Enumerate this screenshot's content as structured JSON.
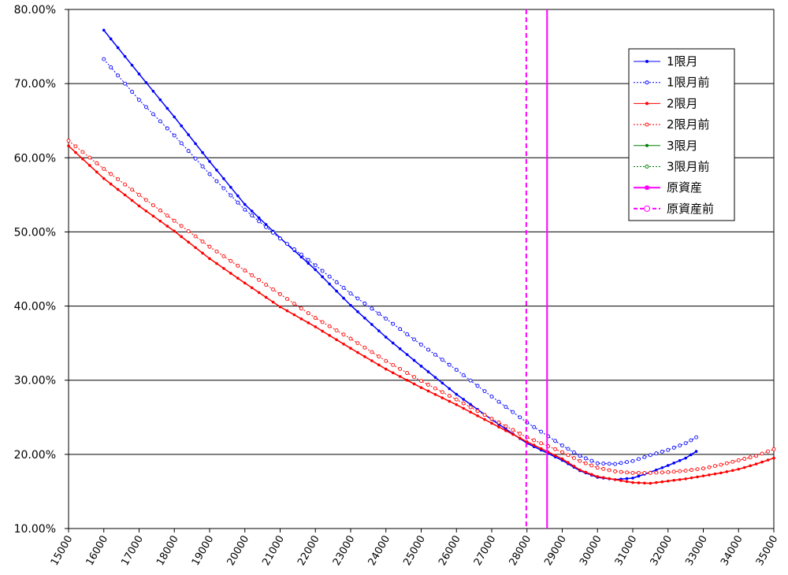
{
  "chart_data": {
    "type": "line",
    "title": "",
    "xlabel": "",
    "ylabel": "",
    "xlim": [
      15000,
      35000
    ],
    "ylim": [
      0.1,
      0.8
    ],
    "x_ticks": [
      "15000",
      "16000",
      "17000",
      "18000",
      "19000",
      "20000",
      "21000",
      "22000",
      "23000",
      "24000",
      "25000",
      "26000",
      "27000",
      "28000",
      "29000",
      "30000",
      "31000",
      "32000",
      "33000",
      "34000",
      "35000"
    ],
    "y_ticks": [
      "10.00%",
      "20.00%",
      "30.00%",
      "40.00%",
      "50.00%",
      "60.00%",
      "70.00%",
      "80.00%"
    ],
    "grid": "horizontal",
    "legend_position": "right",
    "series": [
      {
        "name": "1限月",
        "color": "#0000ff",
        "style": "solid",
        "marker": "filled",
        "x": [
          16000,
          17000,
          18000,
          19000,
          20000,
          21000,
          22000,
          23000,
          24000,
          25000,
          26000,
          27000,
          28000,
          29000,
          29500,
          30000,
          30500,
          31000,
          31500,
          32000,
          32500,
          32800
        ],
        "y": [
          0.772,
          0.713,
          0.655,
          0.595,
          0.537,
          0.492,
          0.449,
          0.401,
          0.358,
          0.319,
          0.281,
          0.247,
          0.215,
          0.192,
          0.178,
          0.169,
          0.166,
          0.168,
          0.176,
          0.185,
          0.195,
          0.204
        ]
      },
      {
        "name": "1限月前",
        "color": "#0000ff",
        "style": "dotted",
        "marker": "open",
        "x": [
          16000,
          17000,
          18000,
          19000,
          20000,
          21000,
          22000,
          23000,
          24000,
          25000,
          26000,
          27000,
          28000,
          29000,
          29500,
          30000,
          30500,
          31000,
          31500,
          32000,
          32500,
          32800
        ],
        "y": [
          0.733,
          0.678,
          0.63,
          0.578,
          0.53,
          0.491,
          0.455,
          0.417,
          0.383,
          0.348,
          0.314,
          0.278,
          0.243,
          0.212,
          0.198,
          0.188,
          0.187,
          0.191,
          0.199,
          0.206,
          0.215,
          0.223
        ]
      },
      {
        "name": "2限月",
        "color": "#ff0000",
        "style": "solid",
        "marker": "filled",
        "x": [
          15000,
          16000,
          17000,
          18000,
          19000,
          20000,
          21000,
          22000,
          23000,
          24000,
          25000,
          26000,
          27000,
          28000,
          29000,
          29500,
          30000,
          30500,
          31000,
          31500,
          32000,
          32500,
          33000,
          33500,
          34000,
          34500,
          35000
        ],
        "y": [
          0.616,
          0.572,
          0.535,
          0.501,
          0.464,
          0.431,
          0.399,
          0.372,
          0.343,
          0.315,
          0.29,
          0.267,
          0.242,
          0.217,
          0.194,
          0.179,
          0.17,
          0.166,
          0.162,
          0.161,
          0.164,
          0.167,
          0.171,
          0.175,
          0.18,
          0.187,
          0.195
        ]
      },
      {
        "name": "2限月前",
        "color": "#ff0000",
        "style": "dotted",
        "marker": "open",
        "x": [
          15000,
          16000,
          17000,
          18000,
          19000,
          20000,
          21000,
          22000,
          23000,
          24000,
          25000,
          26000,
          27000,
          28000,
          29000,
          29500,
          30000,
          30500,
          31000,
          31500,
          32000,
          32500,
          33000,
          33500,
          34000,
          34500,
          35000
        ],
        "y": [
          0.623,
          0.585,
          0.55,
          0.515,
          0.48,
          0.448,
          0.416,
          0.384,
          0.356,
          0.326,
          0.299,
          0.274,
          0.248,
          0.223,
          0.203,
          0.191,
          0.182,
          0.177,
          0.175,
          0.175,
          0.176,
          0.178,
          0.181,
          0.186,
          0.192,
          0.198,
          0.207
        ]
      },
      {
        "name": "3限月",
        "color": "#008000",
        "style": "solid",
        "marker": "filled",
        "x": [],
        "y": []
      },
      {
        "name": "3限月前",
        "color": "#008000",
        "style": "dotted",
        "marker": "open",
        "x": [],
        "y": []
      },
      {
        "name": "原資産",
        "color": "#ff00ff",
        "style": "solid",
        "marker": "filled",
        "vertical_x": 28570
      },
      {
        "name": "原資産前",
        "color": "#ff00ff",
        "style": "dashed",
        "marker": "open",
        "vertical_x": 27980
      }
    ]
  }
}
